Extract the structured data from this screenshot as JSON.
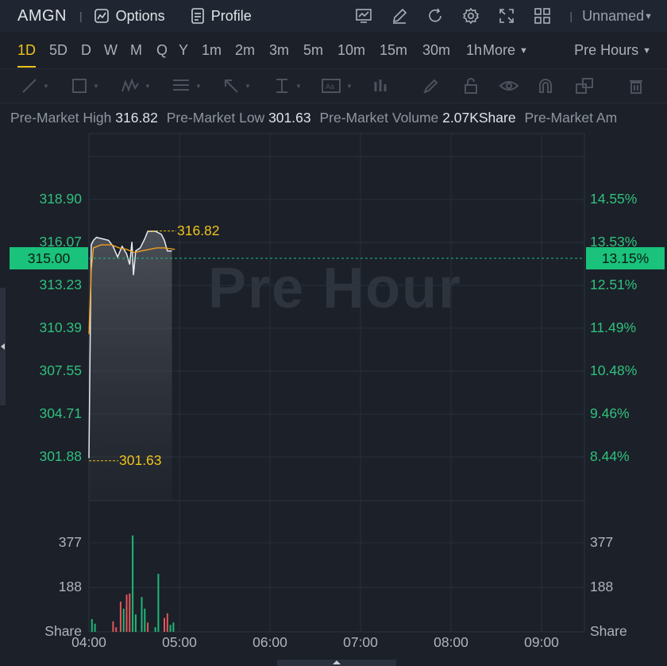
{
  "header": {
    "ticker": "AMGN",
    "options_label": "Options",
    "profile_label": "Profile",
    "layout_name": "Unnamed",
    "icons": [
      "indicators-icon",
      "draw-pen-icon",
      "refresh-icon",
      "settings-icon",
      "fullscreen-icon",
      "layout-grid-icon"
    ]
  },
  "timeframes": [
    "1D",
    "5D",
    "D",
    "W",
    "M",
    "Q",
    "Y",
    "1m",
    "2m",
    "3m",
    "5m",
    "10m",
    "15m",
    "30m",
    "1h"
  ],
  "active_timeframe": "1D",
  "more_label": "More",
  "session_label": "Pre Hours",
  "toolbar_icons": [
    "trend-line-icon",
    "rectangle-icon",
    "pattern-icon",
    "fib-icon",
    "arrow-icon",
    "text-measure-icon",
    "text-box-icon",
    "bar-pattern-icon",
    "brush-icon",
    "lock-icon",
    "eye-icon",
    "magnet-icon",
    "layers-icon",
    "trash-icon"
  ],
  "stats": [
    {
      "label": "Pre-Market High",
      "value": "316.82"
    },
    {
      "label": "Pre-Market Low",
      "value": "301.63"
    },
    {
      "label": "Pre-Market Volume",
      "value": "2.07KShare"
    },
    {
      "label": "Pre-Market Am",
      "value": ""
    }
  ],
  "watermark": "Pre Hour",
  "chart_data": {
    "type": "line",
    "price_axis_left": [
      "318.90",
      "316.07",
      "313.23",
      "310.39",
      "307.55",
      "304.71",
      "301.88"
    ],
    "percent_axis_right": [
      "14.55%",
      "13.53%",
      "12.51%",
      "11.49%",
      "10.48%",
      "9.46%",
      "8.44%"
    ],
    "current_price": "315.00",
    "current_percent": "13.15%",
    "high_label": "316.82",
    "low_label": "301.63",
    "volume_axis": [
      "377",
      "188"
    ],
    "volume_unit": "Share",
    "x_ticks": [
      "04:00",
      "05:00",
      "06:00",
      "07:00",
      "08:00",
      "09:00"
    ],
    "price_series": [
      {
        "t": 0,
        "p": 301.8
      },
      {
        "t": 1.5,
        "p": 315.9
      },
      {
        "t": 3,
        "p": 316.2
      },
      {
        "t": 5,
        "p": 316.4
      },
      {
        "t": 9,
        "p": 316.3
      },
      {
        "t": 13,
        "p": 316.2
      },
      {
        "t": 16,
        "p": 315.8
      },
      {
        "t": 19,
        "p": 315.1
      },
      {
        "t": 22,
        "p": 315.8
      },
      {
        "t": 25,
        "p": 315.3
      },
      {
        "t": 27,
        "p": 314.6
      },
      {
        "t": 28.5,
        "p": 316.1
      },
      {
        "t": 29.5,
        "p": 313.9
      },
      {
        "t": 31,
        "p": 315.5
      },
      {
        "t": 34,
        "p": 315.7
      },
      {
        "t": 37,
        "p": 316.3
      },
      {
        "t": 39,
        "p": 316.8
      },
      {
        "t": 44,
        "p": 316.8
      },
      {
        "t": 48,
        "p": 316.6
      },
      {
        "t": 50,
        "p": 316.2
      },
      {
        "t": 52,
        "p": 315.5
      },
      {
        "t": 55,
        "p": 315.5
      }
    ],
    "avg_series": [
      {
        "t": 0,
        "p": 310.0
      },
      {
        "t": 1.5,
        "p": 314.2
      },
      {
        "t": 3,
        "p": 315.7
      },
      {
        "t": 8,
        "p": 315.9
      },
      {
        "t": 15,
        "p": 315.9
      },
      {
        "t": 20,
        "p": 315.7
      },
      {
        "t": 25,
        "p": 315.6
      },
      {
        "t": 30,
        "p": 315.4
      },
      {
        "t": 35,
        "p": 315.5
      },
      {
        "t": 40,
        "p": 315.6
      },
      {
        "t": 45,
        "p": 315.7
      },
      {
        "t": 50,
        "p": 315.7
      },
      {
        "t": 57,
        "p": 315.6
      }
    ],
    "volumes": [
      {
        "t": 2,
        "v": 55,
        "up": true
      },
      {
        "t": 4,
        "v": 35,
        "up": true
      },
      {
        "t": 16,
        "v": 45,
        "up": false
      },
      {
        "t": 18,
        "v": 20,
        "up": false
      },
      {
        "t": 21,
        "v": 130,
        "up": false
      },
      {
        "t": 23,
        "v": 100,
        "up": true
      },
      {
        "t": 25,
        "v": 160,
        "up": false
      },
      {
        "t": 27,
        "v": 165,
        "up": false
      },
      {
        "t": 29,
        "v": 415,
        "up": true
      },
      {
        "t": 31,
        "v": 75,
        "up": true
      },
      {
        "t": 35,
        "v": 150,
        "up": true
      },
      {
        "t": 37,
        "v": 100,
        "up": true
      },
      {
        "t": 39,
        "v": 40,
        "up": false
      },
      {
        "t": 44,
        "v": 20,
        "up": true
      },
      {
        "t": 46,
        "v": 250,
        "up": true
      },
      {
        "t": 50,
        "v": 60,
        "up": false
      },
      {
        "t": 52,
        "v": 80,
        "up": false
      },
      {
        "t": 54,
        "v": 30,
        "up": true
      },
      {
        "t": 56,
        "v": 40,
        "up": true
      }
    ],
    "volume_range": [
      0,
      565
    ],
    "price_range": [
      301.88,
      318.9
    ],
    "grid": true
  }
}
